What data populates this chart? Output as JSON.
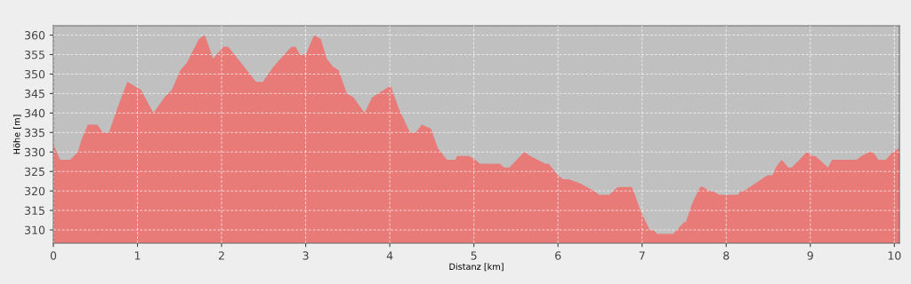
{
  "chart_data": {
    "type": "area",
    "xlabel": "Distanz [km]",
    "ylabel": "Höhe [m]",
    "x": [
      0,
      0.08,
      0.2,
      0.29,
      0.34,
      0.41,
      0.52,
      0.59,
      0.66,
      0.79,
      0.88,
      1.04,
      1.19,
      1.32,
      1.41,
      1.51,
      1.59,
      1.66,
      1.73,
      1.8,
      1.9,
      2.02,
      2.08,
      2.3,
      2.41,
      2.49,
      2.62,
      2.83,
      2.88,
      2.93,
      3.0,
      3.1,
      3.18,
      3.25,
      3.32,
      3.39,
      3.49,
      3.57,
      3.7,
      3.79,
      4.01,
      4.11,
      4.24,
      4.31,
      4.38,
      4.49,
      4.57,
      4.68,
      4.78,
      4.8,
      4.94,
      5.02,
      5.07,
      5.31,
      5.36,
      5.42,
      5.6,
      5.67,
      5.85,
      5.89,
      6.0,
      6.06,
      6.13,
      6.26,
      6.43,
      6.49,
      6.61,
      6.71,
      6.88,
      6.98,
      7.09,
      7.13,
      7.18,
      7.37,
      7.5,
      7.52,
      7.6,
      7.69,
      7.73,
      7.79,
      7.84,
      7.92,
      8.14,
      8.17,
      8.21,
      8.49,
      8.55,
      8.59,
      8.66,
      8.74,
      8.78,
      8.96,
      9.02,
      9.06,
      9.21,
      9.26,
      9.55,
      9.61,
      9.7,
      9.74,
      9.78,
      9.81,
      9.9,
      9.98,
      10.06
    ],
    "series": [
      {
        "color": "#e87a78",
        "values": [
          332,
          328,
          328,
          330,
          333.5,
          337,
          337,
          335,
          335,
          343,
          348,
          346,
          340,
          344,
          346,
          351,
          353,
          356,
          359,
          360,
          354,
          357,
          357,
          351,
          348,
          348,
          352,
          357,
          357,
          355,
          355,
          360,
          359,
          354,
          352,
          351,
          345,
          344,
          340,
          344,
          347,
          341,
          335,
          335,
          337,
          336,
          331,
          328,
          328,
          329,
          329,
          328,
          327,
          327,
          326,
          326,
          330,
          329,
          327,
          327,
          324,
          323,
          323,
          322,
          320,
          319,
          319,
          321,
          321,
          315,
          310,
          310,
          309,
          309,
          312,
          312,
          317,
          321,
          321,
          320,
          320,
          319,
          319,
          320,
          320,
          324,
          324,
          326,
          328,
          326,
          326,
          330,
          329,
          329,
          326,
          328,
          328,
          329,
          330,
          330,
          329,
          328,
          328,
          330,
          331
        ]
      }
    ],
    "xlim": [
      0,
      10.06
    ],
    "ylim": [
      306.6,
      362.4
    ],
    "xticks": [
      0,
      1,
      2,
      3,
      4,
      5,
      6,
      7,
      8,
      9,
      10
    ],
    "yticks": [
      310,
      315,
      320,
      325,
      330,
      335,
      340,
      345,
      350,
      355,
      360
    ],
    "grid": true
  }
}
